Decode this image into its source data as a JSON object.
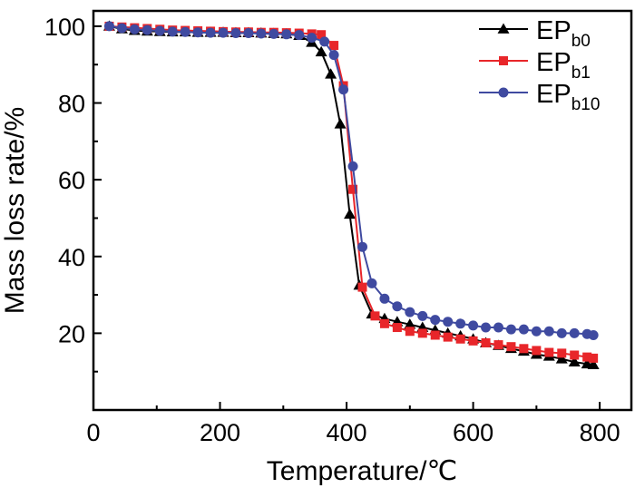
{
  "chart_data": {
    "type": "line",
    "title": "",
    "xlabel": "Temperature/℃",
    "ylabel": "Mass loss rate/%",
    "xlim": [
      0,
      850
    ],
    "ylim": [
      0,
      104
    ],
    "xticks": [
      0,
      200,
      400,
      600,
      800
    ],
    "yticks": [
      20,
      40,
      60,
      80,
      100
    ],
    "legend_position": "top-right",
    "series": [
      {
        "name": "EP_b0",
        "legend_main": "EP",
        "legend_sub": "b0",
        "color": "#000000",
        "marker": "triangle",
        "x": [
          25,
          45,
          65,
          85,
          105,
          125,
          145,
          165,
          185,
          205,
          225,
          245,
          265,
          285,
          305,
          325,
          345,
          360,
          375,
          390,
          405,
          420,
          440,
          460,
          480,
          500,
          520,
          540,
          560,
          580,
          600,
          620,
          640,
          660,
          680,
          700,
          720,
          740,
          760,
          780,
          790
        ],
        "y": [
          100.0,
          99.3,
          98.9,
          98.7,
          98.6,
          98.5,
          98.5,
          98.4,
          98.4,
          98.4,
          98.3,
          98.3,
          98.2,
          98.1,
          98.0,
          97.6,
          95.8,
          93.3,
          87.5,
          74.5,
          51.0,
          32.5,
          25.0,
          23.8,
          23.0,
          22.3,
          21.5,
          20.8,
          20.0,
          19.3,
          18.5,
          17.5,
          16.8,
          16.0,
          15.3,
          14.5,
          14.0,
          13.3,
          12.5,
          12.0,
          11.8
        ]
      },
      {
        "name": "EP_b1",
        "legend_main": "EP",
        "legend_sub": "b1",
        "color": "#e8262a",
        "marker": "square",
        "x": [
          25,
          45,
          65,
          85,
          105,
          125,
          145,
          165,
          185,
          205,
          225,
          245,
          265,
          285,
          305,
          325,
          345,
          360,
          380,
          395,
          410,
          425,
          445,
          460,
          480,
          500,
          520,
          540,
          560,
          580,
          600,
          620,
          640,
          660,
          680,
          700,
          720,
          740,
          760,
          780,
          790
        ],
        "y": [
          100.0,
          99.8,
          99.6,
          99.4,
          99.2,
          99.0,
          98.9,
          98.8,
          98.7,
          98.6,
          98.5,
          98.5,
          98.4,
          98.4,
          98.3,
          98.2,
          98.0,
          97.8,
          95.0,
          84.5,
          57.5,
          32.0,
          24.5,
          22.5,
          21.5,
          20.5,
          20.0,
          19.5,
          19.0,
          18.5,
          18.0,
          17.5,
          17.0,
          16.5,
          16.0,
          15.5,
          15.0,
          14.8,
          14.3,
          13.8,
          13.5
        ]
      },
      {
        "name": "EP_b10",
        "legend_main": "EP",
        "legend_sub": "b10",
        "color": "#3f4aa0",
        "marker": "circle",
        "x": [
          25,
          45,
          65,
          85,
          105,
          125,
          145,
          165,
          185,
          205,
          225,
          245,
          265,
          285,
          305,
          325,
          345,
          365,
          380,
          395,
          410,
          425,
          440,
          460,
          480,
          500,
          520,
          540,
          560,
          580,
          600,
          620,
          640,
          660,
          680,
          700,
          720,
          740,
          760,
          780,
          790
        ],
        "y": [
          100.0,
          99.5,
          99.2,
          99.0,
          98.8,
          98.6,
          98.5,
          98.4,
          98.3,
          98.3,
          98.2,
          98.2,
          98.1,
          98.0,
          97.9,
          97.7,
          97.0,
          96.0,
          92.5,
          83.5,
          63.5,
          42.5,
          33.0,
          29.0,
          27.0,
          25.5,
          24.5,
          23.5,
          23.0,
          22.5,
          22.0,
          21.5,
          21.5,
          21.0,
          21.0,
          20.5,
          20.5,
          20.0,
          20.0,
          19.8,
          19.5
        ]
      }
    ]
  }
}
